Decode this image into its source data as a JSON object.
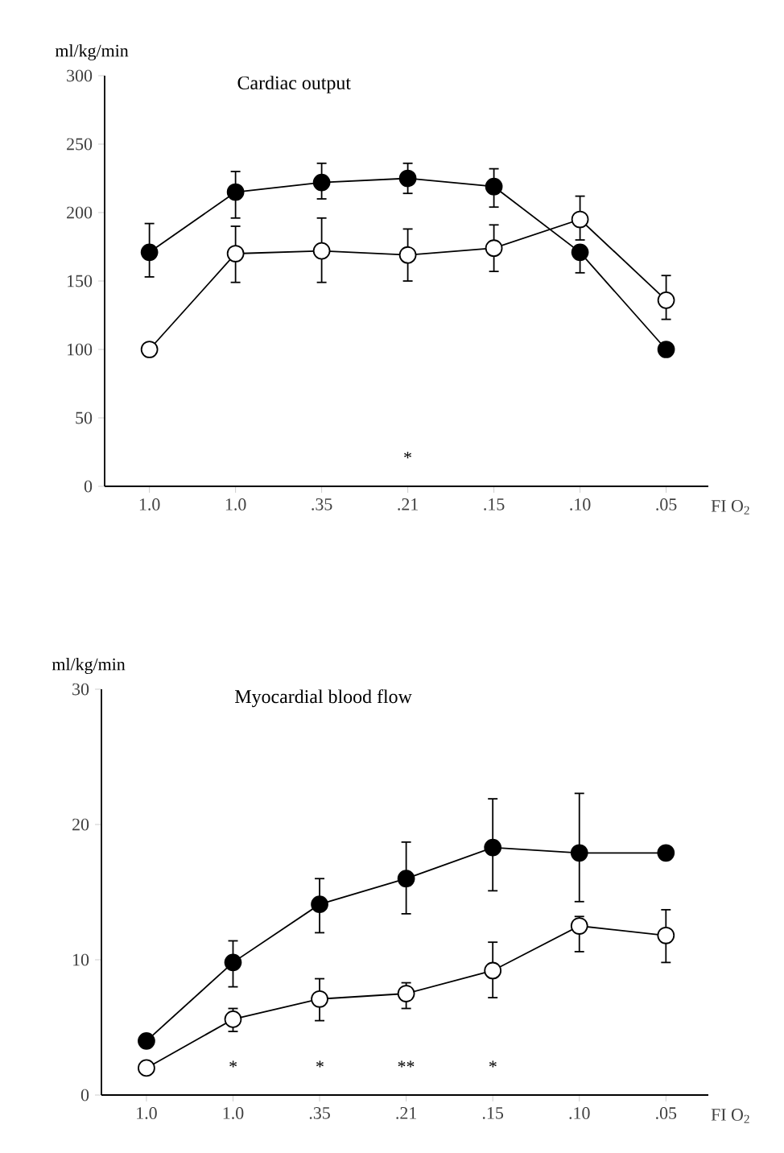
{
  "chart_data": [
    {
      "type": "line",
      "title": "Cardiac output",
      "ylabel": "ml/kg/min",
      "xlabel": "FI O$_{2}$",
      "categories": [
        "1.0",
        "1.0",
        ".35",
        ".21",
        ".15",
        ".10",
        ".05"
      ],
      "ylim": [
        0,
        300
      ],
      "yticks": [
        0,
        50,
        100,
        150,
        200,
        250,
        300
      ],
      "marker": "circle",
      "line_style": "solid",
      "series": [
        {
          "color": "#000000",
          "values": [
            171,
            215,
            222,
            225,
            219,
            171,
            100
          ],
          "errors": [
            [
              153,
              192
            ],
            [
              196,
              230
            ],
            [
              210,
              236
            ],
            [
              214,
              236
            ],
            [
              204,
              232
            ],
            [
              156,
              171
            ],
            null
          ]
        },
        {
          "color": "#ffffff",
          "values": [
            100,
            170,
            172,
            169,
            174,
            195,
            136
          ],
          "errors": [
            null,
            [
              149,
              190
            ],
            [
              149,
              196
            ],
            [
              150,
              188
            ],
            [
              157,
              191
            ],
            [
              180,
              212
            ],
            [
              122,
              154
            ]
          ]
        }
      ],
      "annotations": [
        "*"
      ]
    },
    {
      "type": "line",
      "title": "Myocardial blood flow",
      "ylabel": "ml/kg/min",
      "xlabel": "FI O$_{2}$",
      "categories": [
        "1.0",
        "1.0",
        ".35",
        ".21",
        ".15",
        ".10",
        ".05"
      ],
      "ylim": [
        0,
        30
      ],
      "yticks": [
        0,
        10,
        20,
        30
      ],
      "marker": "circle",
      "line_style": "solid",
      "series": [
        {
          "color": "#000000",
          "values": [
            4.0,
            9.8,
            14.1,
            16.0,
            18.3,
            17.9,
            17.9
          ],
          "errors": [
            null,
            [
              8.0,
              11.4
            ],
            [
              12.0,
              16.0
            ],
            [
              13.4,
              18.7
            ],
            [
              15.1,
              21.9
            ],
            [
              14.3,
              22.3
            ],
            null
          ]
        },
        {
          "color": "#ffffff",
          "values": [
            2.0,
            5.6,
            7.1,
            7.5,
            9.2,
            12.5,
            11.8
          ],
          "errors": [
            null,
            [
              4.7,
              6.4
            ],
            [
              5.5,
              8.6
            ],
            [
              6.4,
              8.3
            ],
            [
              7.2,
              11.3
            ],
            [
              10.6,
              13.2
            ],
            [
              9.8,
              13.7
            ]
          ]
        }
      ],
      "annotations": [
        "*",
        "*",
        "**",
        "*"
      ]
    }
  ]
}
